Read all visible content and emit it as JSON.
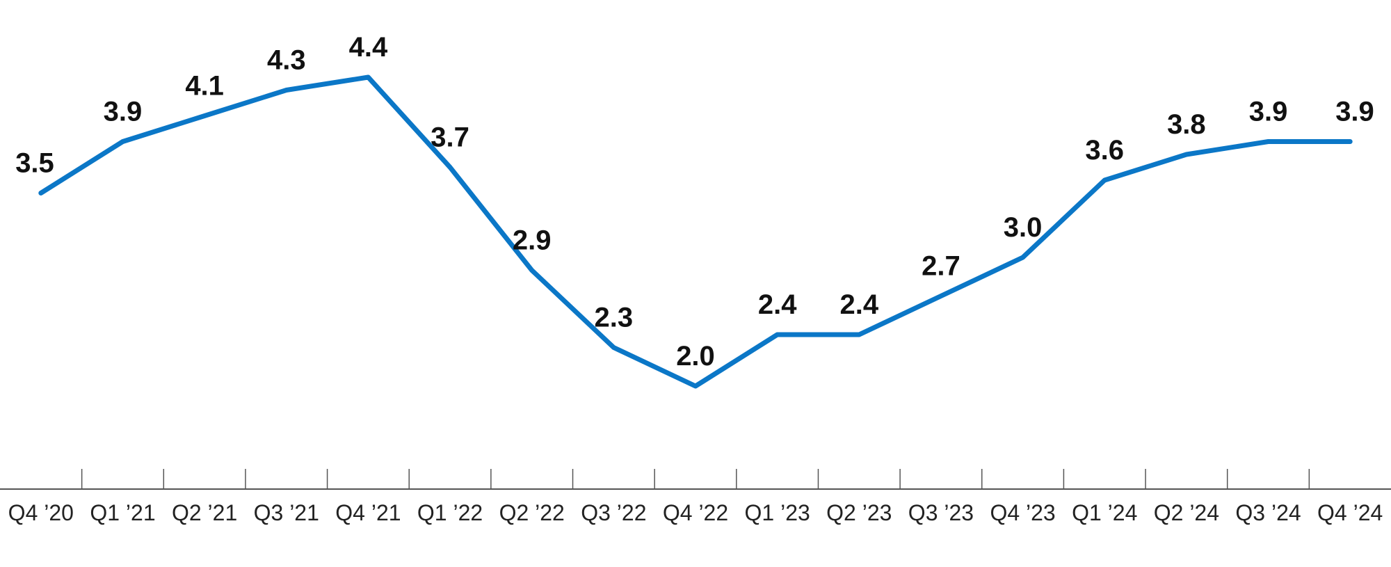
{
  "chart_data": {
    "type": "line",
    "categories": [
      "Q4 ’20",
      "Q1 ’21",
      "Q2 ’21",
      "Q3 ’21",
      "Q4 ’21",
      "Q1 ’22",
      "Q2 ’22",
      "Q3 ’22",
      "Q4 ’22",
      "Q1 ’23",
      "Q2 ’23",
      "Q3 ’23",
      "Q4 ’23",
      "Q1 ’24",
      "Q2 ’24",
      "Q3 ’24",
      "Q4 ’24"
    ],
    "values": [
      3.5,
      3.9,
      4.1,
      4.3,
      4.4,
      3.7,
      2.9,
      2.3,
      2.0,
      2.4,
      2.4,
      2.7,
      3.0,
      3.6,
      3.8,
      3.9,
      3.9
    ],
    "data_labels": [
      "3.5",
      "3.9",
      "4.1",
      "4.3",
      "4.4",
      "3.7",
      "2.9",
      "2.3",
      "2.0",
      "2.4",
      "2.4",
      "2.7",
      "3.0",
      "3.6",
      "3.8",
      "3.9",
      "3.9"
    ],
    "title": "",
    "xlabel": "",
    "ylabel": "",
    "ylim": [
      1.2,
      5.0
    ],
    "grid": false,
    "legend": "none",
    "line_color": "#0b77c7",
    "axis_color": "#555555"
  }
}
